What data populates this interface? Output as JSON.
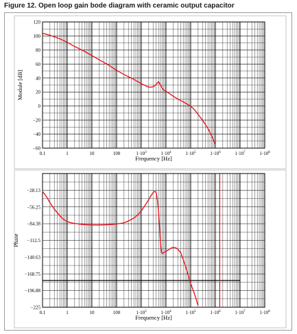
{
  "figure": {
    "title": "Figure 12.   Open loop gain bode diagram with ceramic output capacitor"
  },
  "chart_data": [
    {
      "type": "line",
      "name": "module",
      "title": "",
      "xlabel": "Frequency [Hz]",
      "ylabel": "Module [dB]",
      "xscale": "log",
      "xlim": [
        0.1,
        100000000
      ],
      "ylim": [
        -60,
        120
      ],
      "grid": true,
      "xtick_values": [
        0.1,
        1,
        10,
        100,
        1000,
        10000,
        100000,
        1000000,
        10000000,
        100000000
      ],
      "xtick_labels": [
        "0.1",
        "1",
        "10",
        "100",
        "1·10",
        "1·10",
        "1·10",
        "1·10",
        "1·10",
        "1·10"
      ],
      "xtick_exponents": [
        "",
        "",
        "",
        "",
        "3",
        "4",
        "5",
        "6",
        "7",
        "8"
      ],
      "ytick_values": [
        120,
        100,
        80,
        60,
        40,
        20,
        0,
        -20,
        -40,
        -60
      ],
      "ytick_labels": [
        "120",
        "100",
        "80",
        "60",
        "40",
        "20",
        "0",
        "−20",
        "−40",
        "−60"
      ],
      "color": "#e8141b",
      "series": [
        {
          "x": [
            0.1,
            0.2,
            0.5,
            1,
            2,
            5,
            10,
            20,
            50,
            100,
            200,
            500,
            1000,
            1500,
            2000,
            2500,
            3000,
            3500,
            4000,
            4500,
            5000,
            6000,
            7000,
            8000,
            10000,
            15000,
            20000,
            30000,
            50000,
            70000,
            100000,
            150000,
            200000,
            300000,
            500000,
            700000,
            1000000
          ],
          "y": [
            104,
            101,
            96,
            91,
            85,
            78,
            72,
            66,
            58,
            51,
            45,
            38,
            32,
            29,
            27,
            27,
            27.5,
            29,
            31,
            33,
            35,
            30,
            26,
            23,
            21,
            17,
            14,
            10,
            6,
            3,
            0,
            -6,
            -12,
            -20,
            -32,
            -42,
            -55
          ]
        }
      ]
    },
    {
      "type": "line",
      "name": "phase",
      "title": "",
      "xlabel": "Frequency [Hz]",
      "ylabel": "Phase",
      "xscale": "log",
      "xlim": [
        0.1,
        100000000
      ],
      "ylim": [
        -225,
        0
      ],
      "grid": true,
      "xtick_values": [
        0.1,
        1,
        10,
        100,
        1000,
        10000,
        100000,
        1000000,
        10000000,
        100000000
      ],
      "xtick_labels": [
        "0.1",
        "1",
        "10",
        "100",
        "1·10",
        "1·10",
        "1·10",
        "1·10",
        "1·10",
        "1·10"
      ],
      "xtick_exponents": [
        "",
        "",
        "",
        "",
        "3",
        "4",
        "5",
        "6",
        "7",
        "8"
      ],
      "ytick_values": [
        -28.13,
        -56.25,
        -84.38,
        -112.5,
        -140.63,
        -168.75,
        -196.88,
        -225
      ],
      "ytick_labels": [
        "−28.13",
        "−56.25",
        "−84.38",
        "−112.5",
        "−140.63",
        "−168.75",
        "−196.88",
        "−225"
      ],
      "color": "#e8141b",
      "hline": -180,
      "hline_xmax": 10000000,
      "vline": 1500000,
      "series": [
        {
          "x": [
            0.1,
            0.15,
            0.2,
            0.3,
            0.5,
            0.7,
            1,
            1.5,
            2,
            3,
            5,
            10,
            20,
            50,
            100,
            200,
            300,
            500,
            700,
            1000,
            1500,
            2000,
            2500,
            3000,
            3500,
            4000,
            4500,
            5000,
            5500,
            6000,
            6500,
            7000,
            8000,
            10000,
            13000,
            17000,
            20000,
            25000,
            30000,
            40000,
            50000,
            70000,
            100000,
            150000,
            200000
          ],
          "y": [
            -30,
            -40,
            -49,
            -60,
            -71,
            -77,
            -81,
            -83,
            -84,
            -85,
            -86,
            -86.5,
            -86.5,
            -86,
            -85,
            -83,
            -80,
            -75,
            -70,
            -63,
            -52,
            -44,
            -37,
            -32,
            -30,
            -32,
            -45,
            -65,
            -92,
            -118,
            -131,
            -135,
            -133,
            -131,
            -128,
            -125,
            -124,
            -125,
            -127,
            -134,
            -145,
            -163,
            -185,
            -205,
            -222
          ]
        }
      ]
    }
  ]
}
